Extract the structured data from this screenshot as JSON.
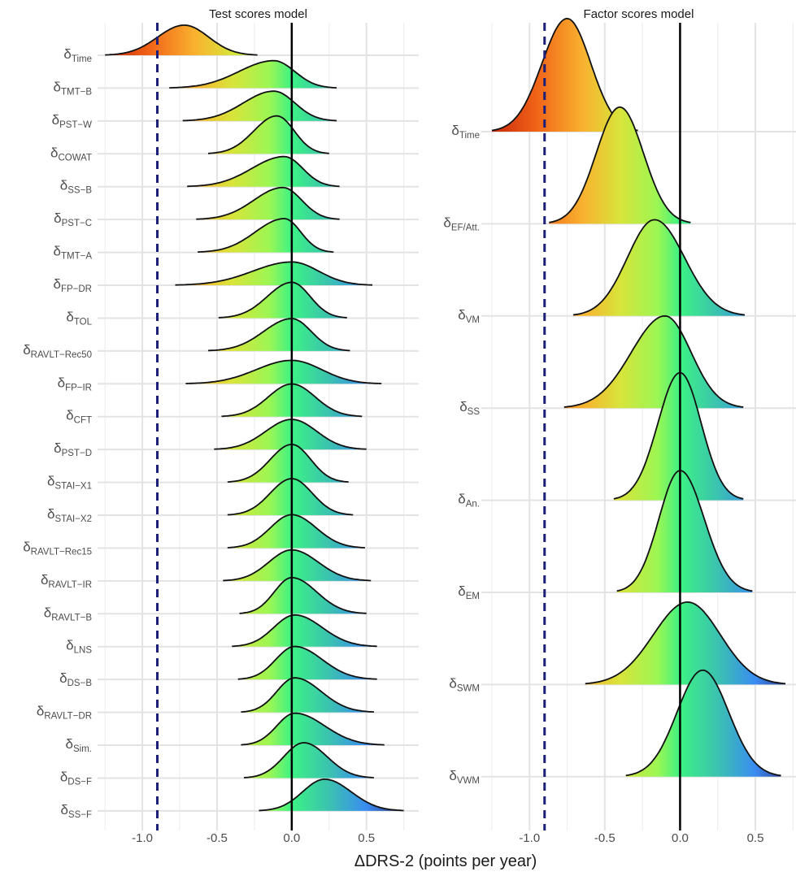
{
  "x_label": "ΔDRS-2 (points per year)",
  "label_symbol": "δ",
  "chart_data": [
    {
      "type": "ridgeline",
      "title": "Test scores model",
      "categories": [
        "Time",
        "TMT−B",
        "PST−W",
        "COWAT",
        "SS−B",
        "PST−C",
        "TMT−A",
        "FP−DR",
        "TOL",
        "RAVLT−Rec50",
        "FP−IR",
        "CFT",
        "PST−D",
        "STAI−X1",
        "STAI−X2",
        "RAVLT−Rec15",
        "RAVLT−IR",
        "RAVLT−B",
        "LNS",
        "DS−B",
        "RAVLT−DR",
        "Sim.",
        "DS−F",
        "SS−F"
      ],
      "min": [
        -1.25,
        -0.82,
        -0.73,
        -0.56,
        -0.7,
        -0.64,
        -0.63,
        -0.78,
        -0.49,
        -0.56,
        -0.71,
        -0.47,
        -0.52,
        -0.43,
        -0.43,
        -0.43,
        -0.46,
        -0.35,
        -0.4,
        -0.36,
        -0.34,
        -0.34,
        -0.32,
        -0.22
      ],
      "peak": [
        -0.72,
        -0.12,
        -0.12,
        -0.1,
        -0.05,
        -0.06,
        -0.05,
        0,
        0,
        0,
        0,
        0,
        0,
        0,
        0,
        0,
        0,
        0,
        0.02,
        0.02,
        0.02,
        0.02,
        0.08,
        0.22
      ],
      "max": [
        -0.23,
        0.3,
        0.3,
        0.25,
        0.32,
        0.32,
        0.28,
        0.54,
        0.37,
        0.39,
        0.6,
        0.47,
        0.5,
        0.38,
        0.41,
        0.49,
        0.53,
        0.5,
        0.57,
        0.57,
        0.55,
        0.62,
        0.55,
        0.75
      ],
      "xlim": [
        -1.3,
        0.85
      ],
      "xticks": [
        {
          "value": -1,
          "label": "-1.0"
        },
        {
          "value": -0.5,
          "label": "-0.5"
        },
        {
          "value": 0,
          "label": "0.0"
        },
        {
          "value": 0.5,
          "label": "0.5"
        }
      ],
      "minor_xticks": [
        -1.25,
        -0.75,
        -0.25,
        0.25,
        0.75
      ],
      "ref_lines": [
        {
          "value": -0.9,
          "style": "dashed",
          "color": "#1b1f78"
        },
        {
          "value": 0,
          "style": "solid",
          "color": "#000000"
        }
      ],
      "gradient": [
        {
          "value": -1.25,
          "color": "#c8290a"
        },
        {
          "value": -0.95,
          "color": "#f26418"
        },
        {
          "value": -0.65,
          "color": "#f9b12f"
        },
        {
          "value": -0.4,
          "color": "#d8e43a"
        },
        {
          "value": -0.15,
          "color": "#9cf653"
        },
        {
          "value": 0,
          "color": "#3cf284"
        },
        {
          "value": 0.25,
          "color": "#3bc2b0"
        },
        {
          "value": 0.5,
          "color": "#3a8cf2"
        },
        {
          "value": 0.75,
          "color": "#2d2a78"
        }
      ]
    },
    {
      "type": "ridgeline",
      "title": "Factor scores model",
      "categories": [
        "Time",
        "EF/Att.",
        "VM",
        "SS",
        "An.",
        "EM",
        "SWM",
        "VWM"
      ],
      "min": [
        -1.25,
        -0.87,
        -0.71,
        -0.77,
        -0.44,
        -0.42,
        -0.63,
        -0.36
      ],
      "peak": [
        -0.75,
        -0.4,
        -0.17,
        -0.1,
        0,
        0,
        0.05,
        0.15
      ],
      "max": [
        -0.28,
        0.07,
        0.43,
        0.42,
        0.42,
        0.48,
        0.7,
        0.67
      ],
      "xlim": [
        -1.32,
        0.77
      ],
      "xticks": [
        {
          "value": -1,
          "label": "-1.0"
        },
        {
          "value": -0.5,
          "label": "-0.5"
        },
        {
          "value": 0,
          "label": "0.0"
        },
        {
          "value": 0.5,
          "label": "0.5"
        }
      ],
      "minor_xticks": [
        -1.25,
        -0.75,
        -0.25,
        0.25,
        0.75
      ],
      "ref_lines": [
        {
          "value": -0.9,
          "style": "dashed",
          "color": "#1b1f78"
        },
        {
          "value": 0,
          "style": "solid",
          "color": "#000000"
        }
      ],
      "gradient": [
        {
          "value": -1.25,
          "color": "#c8290a"
        },
        {
          "value": -0.95,
          "color": "#f26418"
        },
        {
          "value": -0.65,
          "color": "#f9b12f"
        },
        {
          "value": -0.4,
          "color": "#d8e43a"
        },
        {
          "value": -0.15,
          "color": "#9cf653"
        },
        {
          "value": 0,
          "color": "#3cf284"
        },
        {
          "value": 0.25,
          "color": "#3bc2b0"
        },
        {
          "value": 0.5,
          "color": "#3a8cf2"
        },
        {
          "value": 0.75,
          "color": "#2d2a78"
        }
      ]
    }
  ]
}
